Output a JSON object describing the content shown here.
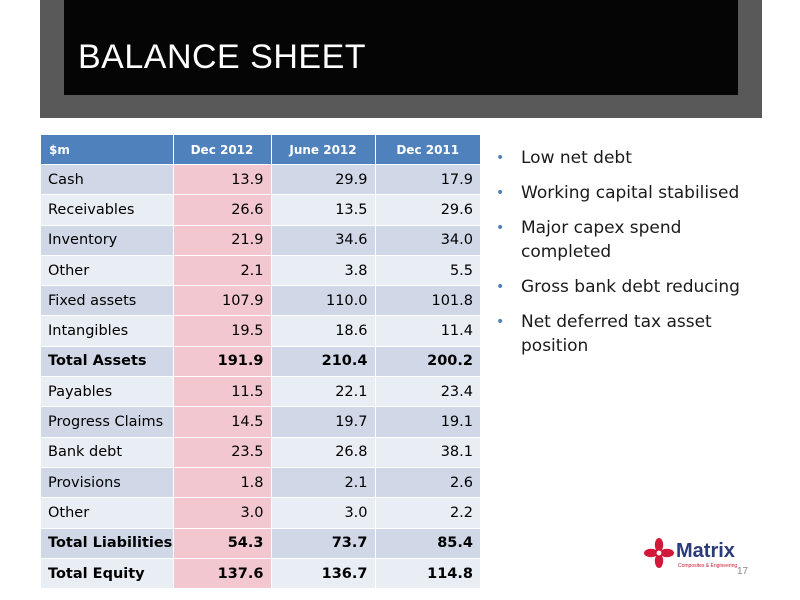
{
  "slide": {
    "title": "BALANCE SHEET",
    "page_number": "17"
  },
  "table": {
    "headers": [
      "$m",
      "Dec 2012",
      "June 2012",
      "Dec 2011"
    ],
    "rows": [
      [
        "Cash",
        "13.9",
        "29.9",
        "17.9"
      ],
      [
        "Receivables",
        "26.6",
        "13.5",
        "29.6"
      ],
      [
        "Inventory",
        "21.9",
        "34.6",
        "34.0"
      ],
      [
        "Other",
        "2.1",
        "3.8",
        "5.5"
      ],
      [
        "Fixed assets",
        "107.9",
        "110.0",
        "101.8"
      ],
      [
        "Intangibles",
        "19.5",
        "18.6",
        "11.4"
      ],
      [
        "Total Assets",
        "191.9",
        "210.4",
        "200.2"
      ],
      [
        "Payables",
        "11.5",
        "22.1",
        "23.4"
      ],
      [
        "Progress Claims",
        "14.5",
        "19.7",
        "19.1"
      ],
      [
        "Bank debt",
        "23.5",
        "26.8",
        "38.1"
      ],
      [
        "Provisions",
        "1.8",
        "2.1",
        "2.6"
      ],
      [
        "Other",
        "3.0",
        "3.0",
        "2.2"
      ],
      [
        "Total Liabilities",
        "54.3",
        "73.7",
        "85.4"
      ],
      [
        "Total Equity",
        "137.6",
        "136.7",
        "114.8"
      ]
    ]
  },
  "bullets": [
    "Low net debt",
    "Working capital stabilised",
    "Major capex spend completed",
    "Gross bank debt reducing",
    "Net deferred tax asset position"
  ],
  "logo": {
    "brand": "Matrix",
    "tagline": "Composites & Engineering",
    "icon": "matrix-star-logo-icon"
  },
  "colors": {
    "header_background": "#050505",
    "header_frame": "#595959",
    "table_header": "#4f81bd",
    "highlight_column": "#f2c7cf",
    "row_band_dark": "#d0d8e8",
    "row_band_light": "#e9edf4",
    "bullet": "#4f81bd",
    "logo_red": "#d2193a",
    "logo_navy": "#2a3a7a"
  }
}
